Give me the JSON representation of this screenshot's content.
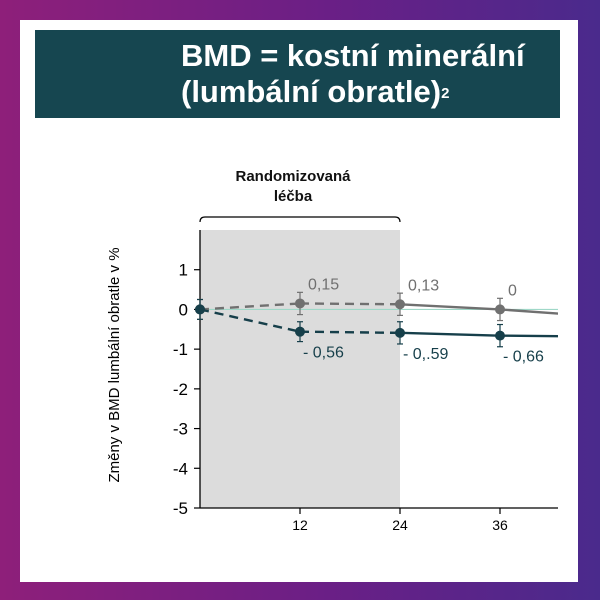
{
  "title": {
    "line1": "BMD = kostní minerální",
    "line2": "(lumbální obratle)",
    "superscript": "2"
  },
  "colors": {
    "title_bg": "#164650",
    "series_grey": "#707070",
    "series_teal": "#163f4a",
    "shade": "#dcdcdc",
    "baseline": "#9fd8c8"
  },
  "chart_data": {
    "type": "line",
    "ylabel": "Změny v BMD lumbální obratle v %",
    "xlabel": "",
    "ylim": [
      -5,
      2
    ],
    "xlim": [
      0,
      46
    ],
    "y_ticks": [
      "1",
      "0",
      "-1",
      "-2",
      "-3",
      "-4",
      "-5"
    ],
    "x_ticks": [
      "12",
      "24",
      "36"
    ],
    "x_tick_values": [
      12,
      24,
      36
    ],
    "y_tick_values": [
      1,
      0,
      -1,
      -2,
      -3,
      -4,
      -5
    ],
    "shaded_region": {
      "x_from": 0,
      "x_to": 24,
      "label": [
        "Randomizovaná",
        "léčba"
      ]
    },
    "baseline_y": 0,
    "series": [
      {
        "color": "#707070",
        "points": [
          {
            "x": 0,
            "y": 0,
            "err": 0.25,
            "label": ""
          },
          {
            "x": 12,
            "y": 0.15,
            "err": 0.28,
            "label": "0,15"
          },
          {
            "x": 24,
            "y": 0.13,
            "err": 0.28,
            "label": "0,13"
          },
          {
            "x": 36,
            "y": 0,
            "err": 0.28,
            "label": "0"
          },
          {
            "x": 46,
            "y": -0.15,
            "err": 0,
            "label": ""
          }
        ],
        "dashed_until": 24
      },
      {
        "color": "#163f4a",
        "points": [
          {
            "x": 0,
            "y": 0,
            "err": 0.25,
            "label": ""
          },
          {
            "x": 12,
            "y": -0.56,
            "err": 0.25,
            "label": "- 0,56"
          },
          {
            "x": 24,
            "y": -0.59,
            "err": 0.28,
            "label": "- 0,.59"
          },
          {
            "x": 36,
            "y": -0.66,
            "err": 0.28,
            "label": "- 0,66"
          },
          {
            "x": 46,
            "y": -0.68,
            "err": 0,
            "label": ""
          }
        ],
        "dashed_until": 24
      }
    ]
  }
}
